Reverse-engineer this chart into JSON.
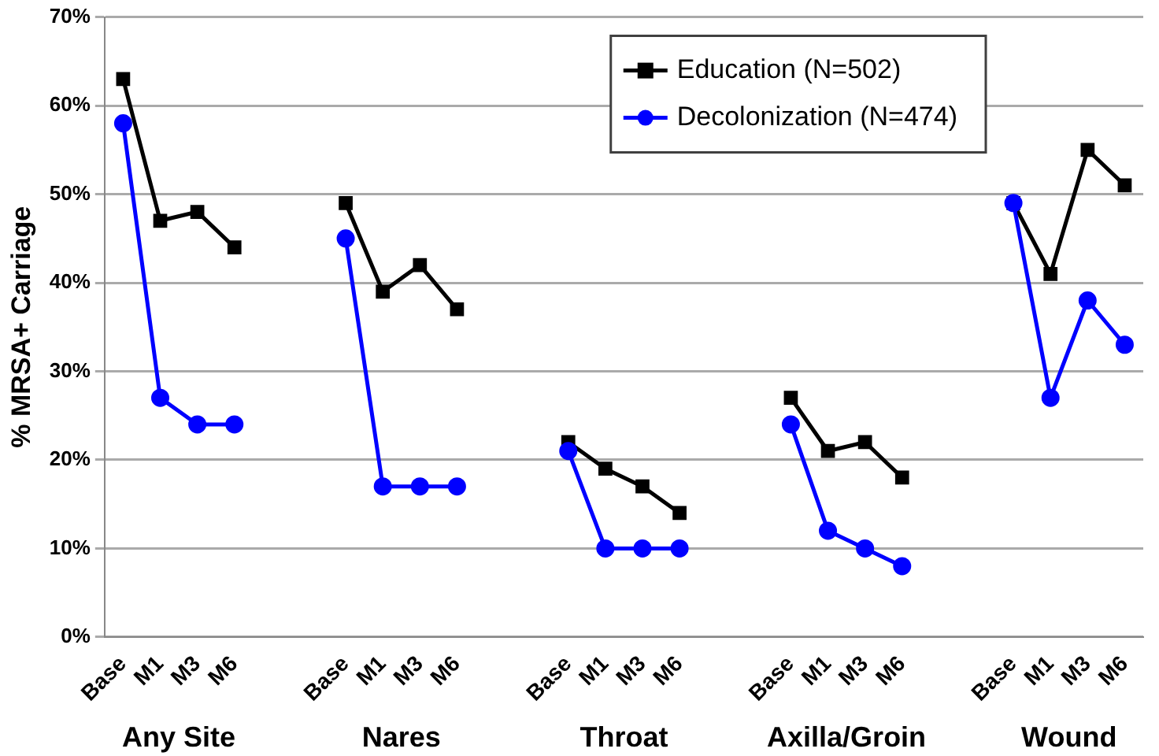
{
  "chart_data": {
    "type": "line",
    "ylabel": "% MRSA+ Carriage",
    "categories": [
      "Base",
      "M1",
      "M3",
      "M6",
      null,
      null,
      "Base",
      "M1",
      "M3",
      "M6",
      null,
      null,
      "Base",
      "M1",
      "M3",
      "M6",
      null,
      null,
      "Base",
      "M1",
      "M3",
      "M6",
      null,
      null,
      "Base",
      "M1",
      "M3",
      "M6"
    ],
    "series": [
      {
        "name": "Education (N=502)",
        "color": "#000000",
        "marker": "square",
        "values": [
          63,
          47,
          48,
          44,
          null,
          null,
          49,
          39,
          42,
          37,
          null,
          null,
          22,
          19,
          17,
          14,
          null,
          null,
          27,
          21,
          22,
          18,
          null,
          null,
          49,
          41,
          55,
          51
        ]
      },
      {
        "name": "Decolonization (N=474)",
        "color": "#0000ff",
        "marker": "circle",
        "values": [
          58,
          27,
          24,
          24,
          null,
          null,
          45,
          17,
          17,
          17,
          null,
          null,
          21,
          10,
          10,
          10,
          null,
          null,
          24,
          12,
          10,
          8,
          null,
          null,
          49,
          27,
          38,
          33
        ]
      }
    ],
    "ylim": [
      0,
      70
    ],
    "yticks": [
      {
        "value": 0,
        "label": "0%"
      },
      {
        "value": 10,
        "label": "10%"
      },
      {
        "value": 20,
        "label": "20%"
      },
      {
        "value": 30,
        "label": "30%"
      },
      {
        "value": 40,
        "label": "40%"
      },
      {
        "value": 50,
        "label": "50%"
      },
      {
        "value": 60,
        "label": "60%"
      },
      {
        "value": 70,
        "label": "70%"
      }
    ],
    "grid": "y",
    "legend": "top right",
    "line_style": "solid",
    "annotations": [
      "Any Site",
      "Nares",
      "Throat",
      "Axilla/Groin",
      "Wound"
    ]
  }
}
